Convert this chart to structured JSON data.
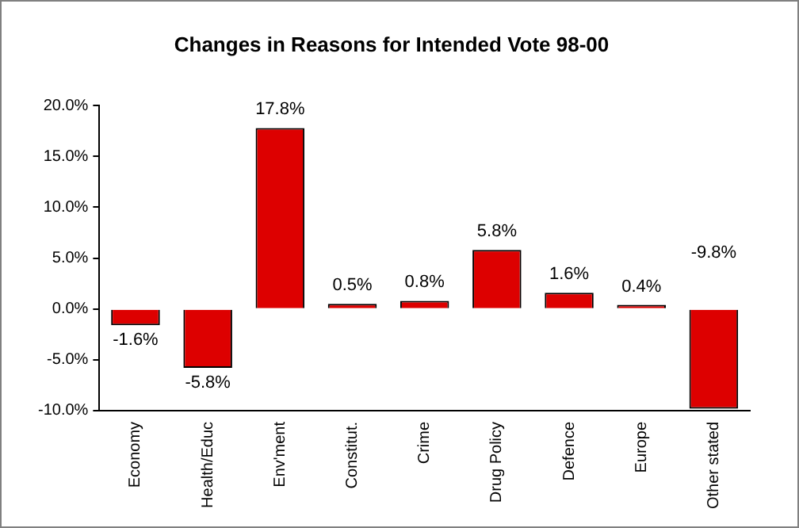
{
  "chart_data": {
    "type": "bar",
    "title": "Changes in Reasons for Intended Vote 98-00",
    "categories": [
      "Economy",
      "Health/Educ",
      "Env'ment",
      "Constitut.",
      "Crime",
      "Drug Policy",
      "Defence",
      "Europe",
      "Other stated"
    ],
    "values": [
      -1.6,
      -5.8,
      17.8,
      0.5,
      0.8,
      5.8,
      1.6,
      0.4,
      -9.8
    ],
    "color": "#dd0000",
    "ylim": [
      -10,
      20
    ],
    "yticks": [
      {
        "value": -10,
        "label": "-10.0%"
      },
      {
        "value": -5,
        "label": "-5.0%"
      },
      {
        "value": 0,
        "label": "0.0%"
      },
      {
        "value": 5,
        "label": "5.0%"
      },
      {
        "value": 10,
        "label": "10.0%"
      },
      {
        "value": 15,
        "label": "15.0%"
      },
      {
        "value": 20,
        "label": "20.0%"
      }
    ],
    "value_labels": [
      "-1.6%",
      "-5.8%",
      "17.8%",
      "0.5%",
      "0.8%",
      "5.8%",
      "1.6%",
      "0.4%",
      "-9.8%"
    ],
    "grid": false,
    "legend": false
  }
}
